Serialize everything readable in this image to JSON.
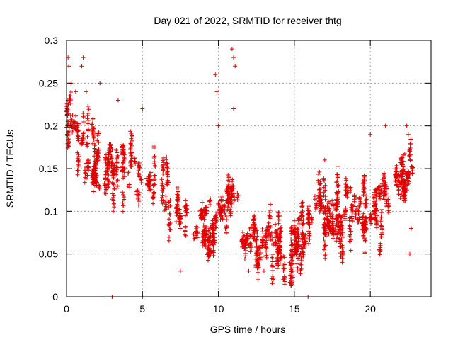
{
  "chart_data": {
    "type": "scatter",
    "title": "Day 021 of 2022, SRMTID for receiver thtg",
    "xlabel": "GPS time / hours",
    "ylabel": "SRMTID / TECUs",
    "xlim": [
      0,
      24
    ],
    "ylim": [
      0,
      0.3
    ],
    "xticks": [
      0,
      5,
      10,
      15,
      20
    ],
    "yticks": [
      0,
      0.05,
      0.1,
      0.15,
      0.2,
      0.25,
      0.3
    ],
    "grid": true,
    "marker": "plus",
    "color": "#e00000",
    "trend": [
      [
        0,
        0.2
      ],
      [
        0.5,
        0.19
      ],
      [
        1,
        0.18
      ],
      [
        1.5,
        0.17
      ],
      [
        2,
        0.15
      ],
      [
        2.5,
        0.14
      ],
      [
        3,
        0.15
      ],
      [
        3.5,
        0.16
      ],
      [
        4,
        0.15
      ],
      [
        4.5,
        0.14
      ],
      [
        5,
        0.13
      ],
      [
        5.5,
        0.13
      ],
      [
        6,
        0.13
      ],
      [
        6.5,
        0.12
      ],
      [
        7,
        0.11
      ],
      [
        7.5,
        0.1
      ],
      [
        8,
        0.1
      ],
      [
        8.5,
        0.09
      ],
      [
        9,
        0.09
      ],
      [
        9.5,
        0.09
      ],
      [
        10,
        0.1
      ],
      [
        10.5,
        0.11
      ],
      [
        11,
        0.12
      ],
      [
        11.5,
        0.1
      ],
      [
        12,
        0.07
      ],
      [
        12.5,
        0.05
      ],
      [
        13,
        0.06
      ],
      [
        13.5,
        0.07
      ],
      [
        14,
        0.06
      ],
      [
        14.5,
        0.05
      ],
      [
        15,
        0.06
      ],
      [
        15.5,
        0.08
      ],
      [
        16,
        0.09
      ],
      [
        16.5,
        0.11
      ],
      [
        17,
        0.11
      ],
      [
        17.5,
        0.1
      ],
      [
        18,
        0.1
      ],
      [
        18.5,
        0.1
      ],
      [
        19,
        0.1
      ],
      [
        19.5,
        0.1
      ],
      [
        20,
        0.1
      ],
      [
        20.5,
        0.11
      ],
      [
        21,
        0.12
      ],
      [
        21.5,
        0.13
      ],
      [
        22,
        0.14
      ],
      [
        22.5,
        0.15
      ],
      [
        22.8,
        0.15
      ]
    ],
    "spread": 0.045,
    "outliers": [
      [
        0.1,
        0.28
      ],
      [
        0.15,
        0.27
      ],
      [
        0.3,
        0.25
      ],
      [
        0.6,
        0.24
      ],
      [
        1.0,
        0.27
      ],
      [
        1.1,
        0.28
      ],
      [
        1.3,
        0.24
      ],
      [
        2.2,
        0.25
      ],
      [
        3.4,
        0.23
      ],
      [
        5.0,
        0.22
      ],
      [
        9.8,
        0.26
      ],
      [
        9.9,
        0.24
      ],
      [
        10.0,
        0.2
      ],
      [
        10.9,
        0.29
      ],
      [
        11.0,
        0.28
      ],
      [
        11.1,
        0.27
      ],
      [
        11.0,
        0.22
      ],
      [
        12.6,
        0.02
      ],
      [
        14.9,
        0.03
      ],
      [
        17.0,
        0.16
      ],
      [
        20.0,
        0.19
      ],
      [
        21.0,
        0.2
      ],
      [
        22.4,
        0.2
      ],
      [
        22.5,
        0.19
      ],
      [
        22.7,
        0.08
      ],
      [
        22.6,
        0.05
      ],
      [
        7.5,
        0.03
      ],
      [
        12.0,
        0.03
      ],
      [
        13.0,
        0.03
      ]
    ],
    "zero_points": [
      2.4,
      3.0,
      5.0,
      5.1,
      15.9
    ],
    "count": 2600
  }
}
